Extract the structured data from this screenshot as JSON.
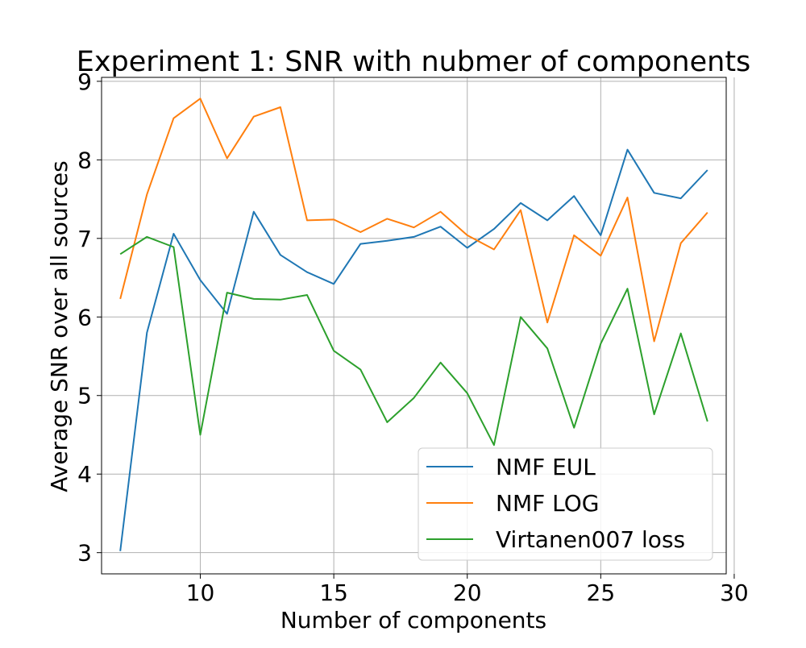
{
  "chart_data": {
    "type": "line",
    "title": "Experiment 1: SNR with nubmer of components",
    "xlabel": "Number of components",
    "ylabel": "Average SNR over all sources",
    "xlim": [
      6.3,
      29.7
    ],
    "ylim": [
      2.73,
      9.05
    ],
    "xticks": [
      10,
      15,
      20,
      25,
      30
    ],
    "yticks": [
      3,
      4,
      5,
      6,
      7,
      8,
      9
    ],
    "grid": true,
    "legend_position": "lower-right",
    "x": [
      7,
      8,
      9,
      10,
      11,
      12,
      13,
      14,
      15,
      16,
      17,
      18,
      19,
      20,
      21,
      22,
      23,
      24,
      25,
      26,
      27,
      28,
      29
    ],
    "series": [
      {
        "name": "NMF EUL",
        "color": "#1f77b4",
        "values": [
          3.02,
          5.8,
          7.06,
          6.47,
          6.04,
          7.34,
          6.79,
          6.57,
          6.42,
          6.93,
          6.97,
          7.02,
          7.15,
          6.88,
          7.12,
          7.45,
          7.23,
          7.54,
          7.04,
          8.13,
          7.58,
          7.51,
          7.87
        ]
      },
      {
        "name": "NMF LOG",
        "color": "#ff7f0e",
        "values": [
          6.23,
          7.56,
          8.53,
          8.78,
          8.02,
          8.55,
          8.67,
          7.23,
          7.24,
          7.08,
          7.25,
          7.14,
          7.34,
          7.04,
          6.86,
          7.36,
          5.93,
          7.04,
          6.78,
          7.52,
          5.69,
          6.94,
          7.33
        ]
      },
      {
        "name": "Virtanen007 loss",
        "color": "#2ca02c",
        "values": [
          6.8,
          7.02,
          6.89,
          4.5,
          6.31,
          6.23,
          6.22,
          6.28,
          5.57,
          5.33,
          4.66,
          4.97,
          5.42,
          5.03,
          4.37,
          6.0,
          5.6,
          4.59,
          5.66,
          6.36,
          4.76,
          5.79,
          4.67
        ]
      }
    ]
  }
}
